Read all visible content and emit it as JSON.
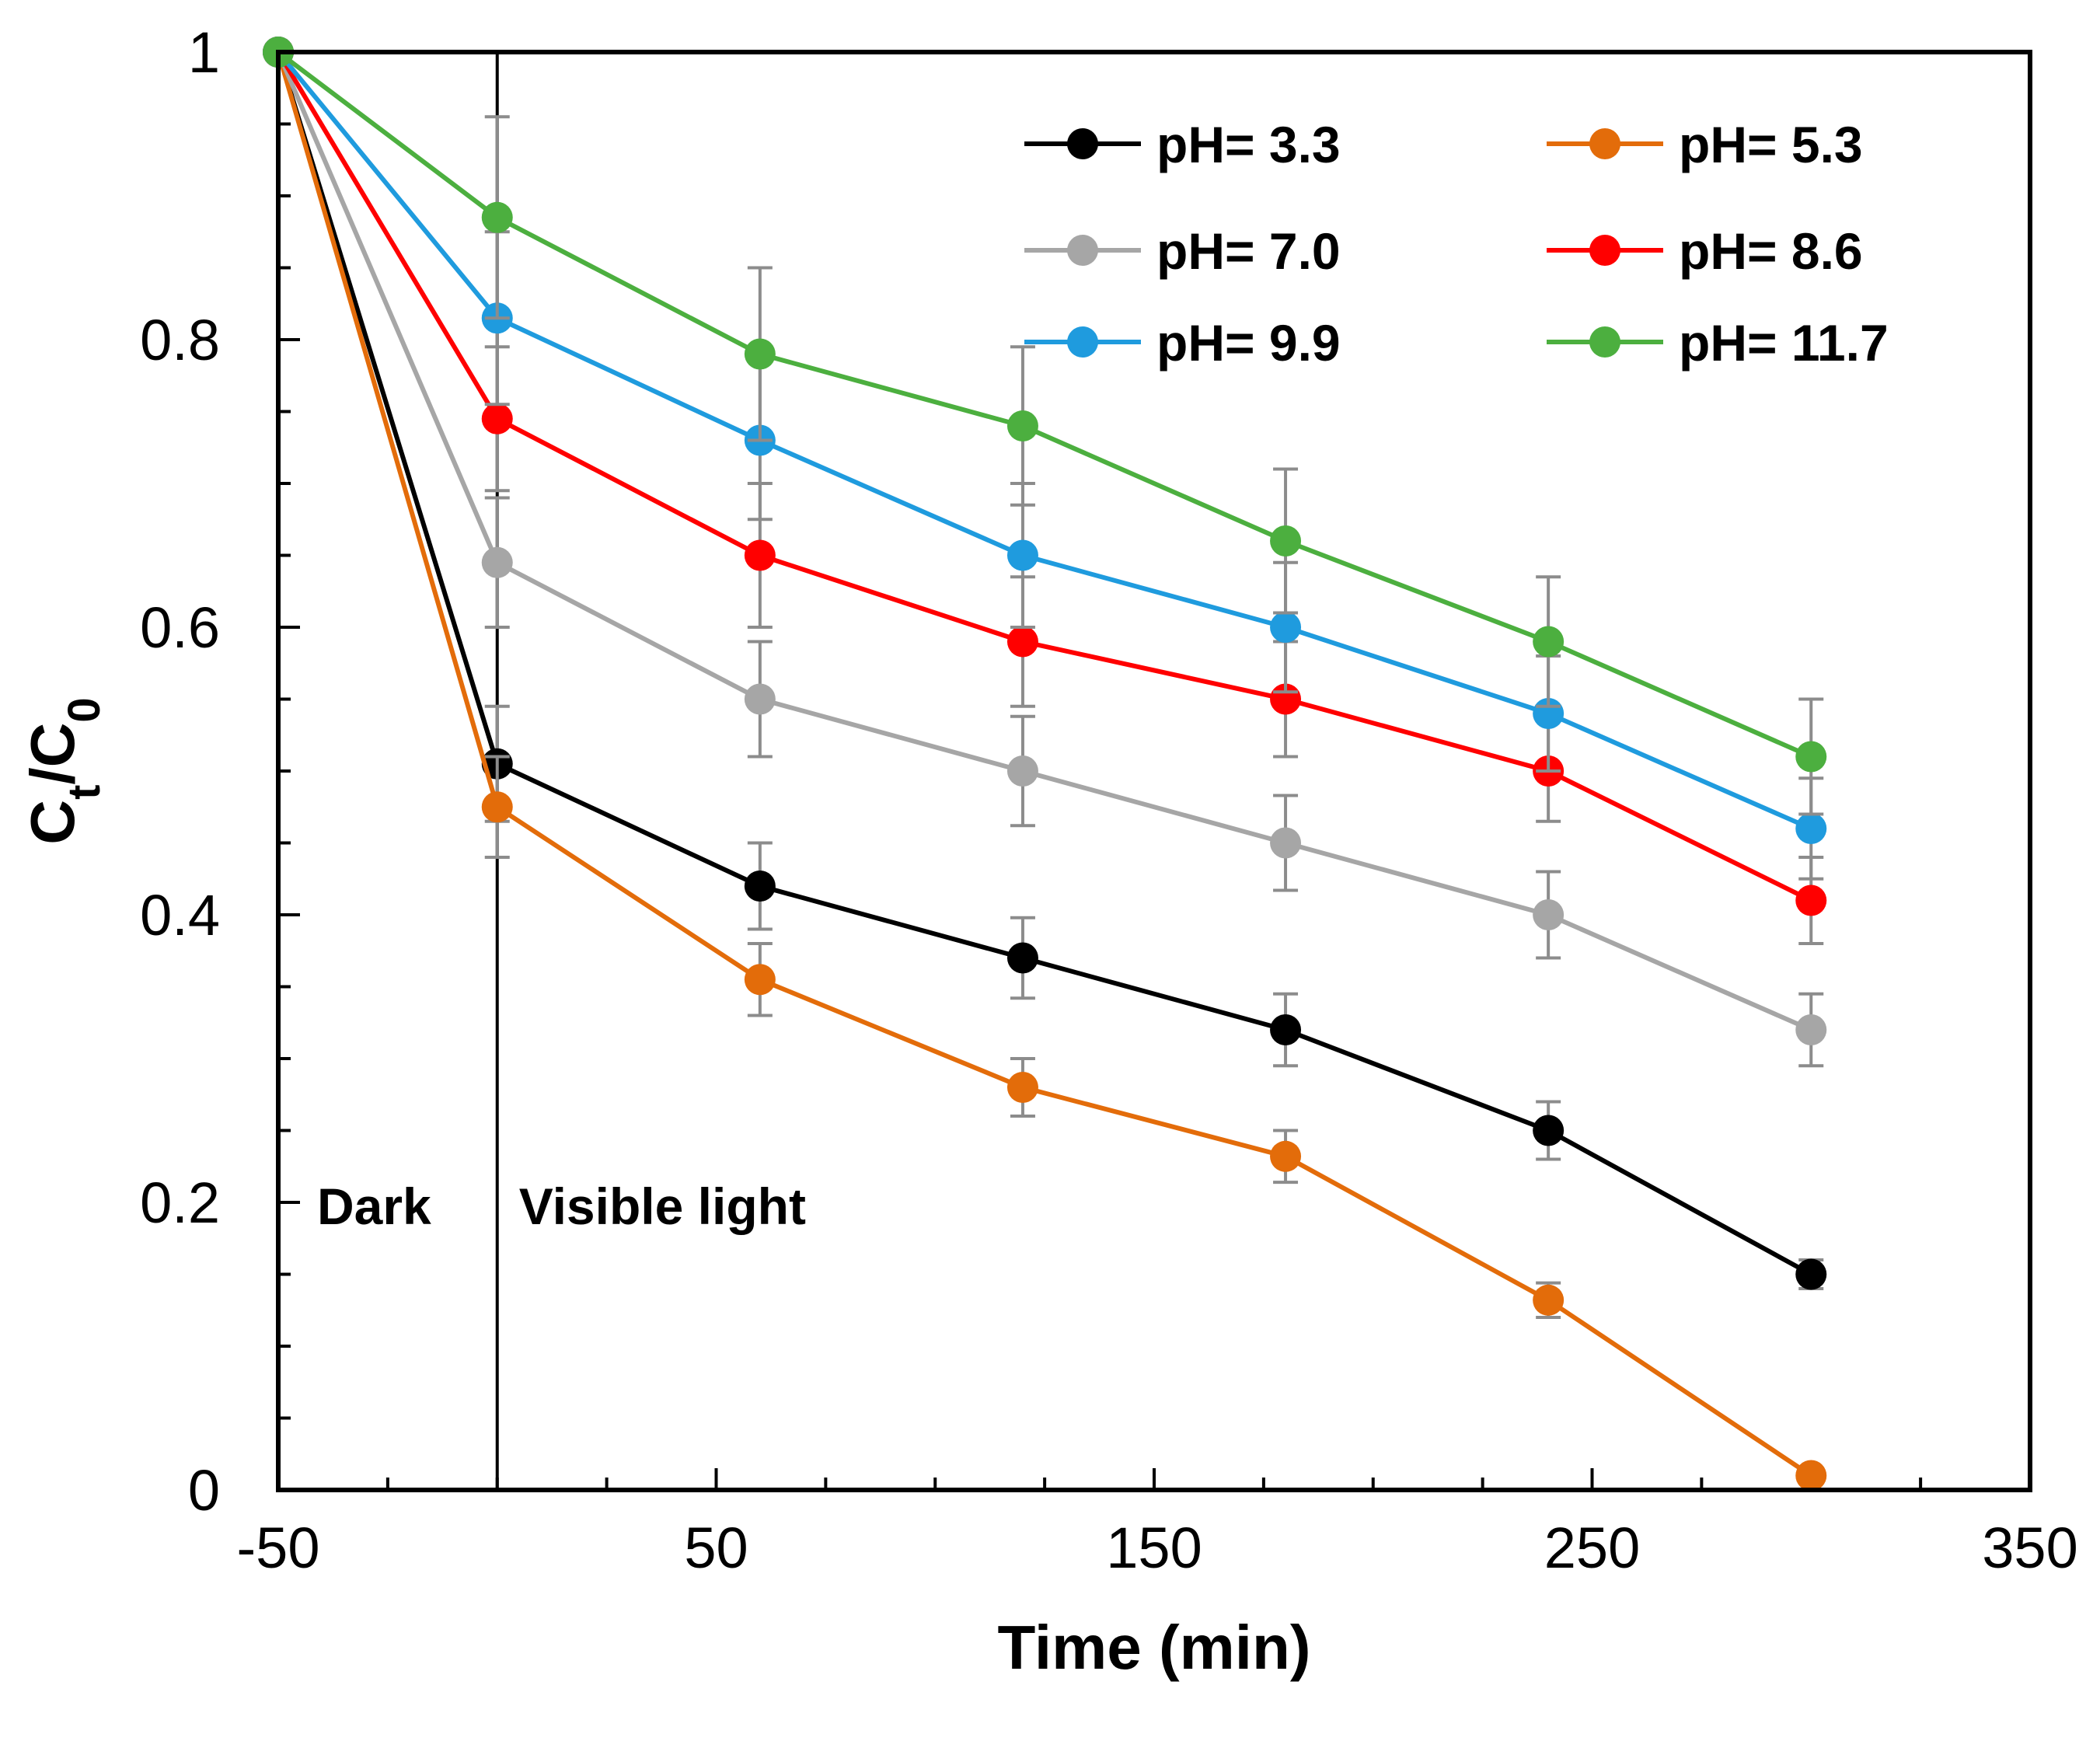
{
  "chart_data": {
    "type": "line",
    "title": "",
    "xlabel": "Time (min)",
    "ylabel": {
      "main": "C",
      "sub1": "t",
      "slash": "/C",
      "sub2": "0"
    },
    "xlim": [
      -50,
      350
    ],
    "ylim": [
      0,
      1
    ],
    "xticks": [
      -50,
      50,
      150,
      250,
      350
    ],
    "xtick_labels": [
      "-50",
      "50",
      "150",
      "250",
      "350"
    ],
    "yticks": [
      0,
      0.2,
      0.4,
      0.6,
      0.8,
      1
    ],
    "ytick_labels": [
      "0",
      "0.2",
      "0.4",
      "0.6",
      "0.8",
      "1"
    ],
    "grid": false,
    "legend_position": "top-right",
    "x": [
      -50,
      0,
      60,
      120,
      180,
      240,
      300
    ],
    "series": [
      {
        "name": "pH= 3.3",
        "color": "#000000",
        "values": [
          1,
          0.505,
          0.42,
          0.37,
          0.32,
          0.25,
          0.15
        ],
        "errors": [
          0,
          0.04,
          0.03,
          0.028,
          0.025,
          0.02,
          0.01
        ]
      },
      {
        "name": "pH= 5.3",
        "color": "#E36C0A",
        "values": [
          1,
          0.475,
          0.355,
          0.28,
          0.232,
          0.132,
          0.01
        ],
        "errors": [
          0,
          0.035,
          0.025,
          0.02,
          0.018,
          0.012,
          0.005
        ]
      },
      {
        "name": "pH= 7.0",
        "color": "#A6A6A6",
        "values": [
          1,
          0.645,
          0.55,
          0.5,
          0.45,
          0.4,
          0.32
        ],
        "errors": [
          0,
          0.045,
          0.04,
          0.038,
          0.033,
          0.03,
          0.025
        ]
      },
      {
        "name": "pH= 8.6",
        "color": "#FF0000",
        "values": [
          1,
          0.745,
          0.65,
          0.59,
          0.55,
          0.5,
          0.41
        ],
        "errors": [
          0,
          0.05,
          0.05,
          0.045,
          0.04,
          0.035,
          0.03
        ]
      },
      {
        "name": "pH= 9.9",
        "color": "#1F9BDE",
        "values": [
          1,
          0.815,
          0.73,
          0.65,
          0.6,
          0.54,
          0.46
        ],
        "errors": [
          0,
          0.06,
          0.055,
          0.05,
          0.045,
          0.04,
          0.035
        ]
      },
      {
        "name": "pH= 11.7",
        "color": "#4CAF3F",
        "values": [
          1,
          0.885,
          0.79,
          0.74,
          0.66,
          0.59,
          0.51
        ],
        "errors": [
          0,
          0.07,
          0.06,
          0.055,
          0.05,
          0.045,
          0.04
        ]
      }
    ],
    "annotations": {
      "divider_x": 0,
      "left_label": "Dark",
      "right_label": "Visible light"
    }
  }
}
